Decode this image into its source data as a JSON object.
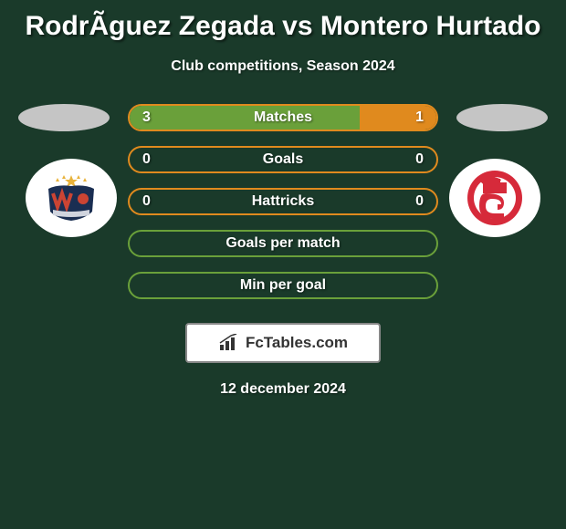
{
  "title": "RodrÃ­guez Zegada vs Montero Hurtado",
  "subtitle": "Club competitions, Season 2024",
  "left_badge": {
    "bg": "#ffffff",
    "svg_colors": {
      "top_star": "#e8b23a",
      "wing": "#1a2e52",
      "ball": "#c43",
      "band": "#d0d4de"
    }
  },
  "right_badge": {
    "bg": "#ffffff",
    "svg_colors": {
      "outer": "#d62a3a",
      "inner": "#ffffff",
      "letter": "#d62a3a"
    }
  },
  "ellipse_color": "#c5c5c5",
  "bars": [
    {
      "label": "Matches",
      "left_val": "3",
      "right_val": "1",
      "left_pct": 75,
      "right_pct": 25,
      "border": "#e08a1e",
      "left_fill": "#6aa03a",
      "right_fill": "#e08a1e"
    },
    {
      "label": "Goals",
      "left_val": "0",
      "right_val": "0",
      "left_pct": 0,
      "right_pct": 0,
      "border": "#e08a1e",
      "left_fill": "#6aa03a",
      "right_fill": "#e08a1e"
    },
    {
      "label": "Hattricks",
      "left_val": "0",
      "right_val": "0",
      "left_pct": 0,
      "right_pct": 0,
      "border": "#e08a1e",
      "left_fill": "#6aa03a",
      "right_fill": "#e08a1e"
    },
    {
      "label": "Goals per match",
      "left_val": "",
      "right_val": "",
      "left_pct": 0,
      "right_pct": 0,
      "border": "#6aa03a",
      "left_fill": "#6aa03a",
      "right_fill": "#e08a1e"
    },
    {
      "label": "Min per goal",
      "left_val": "",
      "right_val": "",
      "left_pct": 0,
      "right_pct": 0,
      "border": "#6aa03a",
      "left_fill": "#6aa03a",
      "right_fill": "#e08a1e"
    }
  ],
  "brand": {
    "text": "FcTables.com"
  },
  "date": "12 december 2024",
  "bg_color": "#1a3a2a"
}
